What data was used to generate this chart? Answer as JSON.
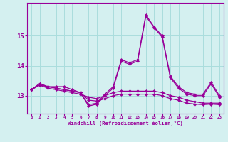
{
  "xlabel": "Windchill (Refroidissement éolien,°C)",
  "hours": [
    0,
    1,
    2,
    3,
    4,
    5,
    6,
    7,
    8,
    9,
    10,
    11,
    12,
    13,
    14,
    15,
    16,
    17,
    18,
    19,
    20,
    21,
    22,
    23
  ],
  "line1": [
    13.2,
    13.4,
    13.3,
    13.3,
    13.3,
    13.2,
    13.1,
    12.7,
    12.75,
    13.05,
    13.3,
    14.2,
    14.1,
    14.2,
    15.7,
    15.3,
    15.0,
    13.65,
    13.3,
    13.1,
    13.05,
    13.05,
    13.45,
    13.0
  ],
  "line2": [
    13.2,
    13.4,
    13.3,
    13.25,
    13.2,
    13.15,
    13.1,
    12.65,
    12.72,
    13.0,
    13.25,
    14.15,
    14.05,
    14.15,
    15.65,
    15.28,
    14.95,
    13.6,
    13.25,
    13.05,
    13.0,
    13.0,
    13.4,
    12.95
  ],
  "line3": [
    13.2,
    13.35,
    13.25,
    13.2,
    13.15,
    13.1,
    13.05,
    12.95,
    12.9,
    13.0,
    13.1,
    13.15,
    13.15,
    13.15,
    13.15,
    13.15,
    13.1,
    13.0,
    12.95,
    12.85,
    12.8,
    12.75,
    12.75,
    12.75
  ],
  "line4": [
    13.2,
    13.35,
    13.3,
    13.25,
    13.2,
    13.15,
    13.1,
    12.85,
    12.82,
    12.9,
    13.0,
    13.05,
    13.05,
    13.05,
    13.05,
    13.05,
    13.0,
    12.9,
    12.85,
    12.75,
    12.72,
    12.7,
    12.72,
    12.7
  ],
  "line_color": "#990099",
  "bg_color": "#d4f0f0",
  "grid_color": "#aadddd",
  "ylim": [
    12.4,
    16.1
  ],
  "yticks": [
    13,
    14,
    15
  ],
  "marker": "D",
  "markersize": 2.0,
  "linewidth": 0.9
}
